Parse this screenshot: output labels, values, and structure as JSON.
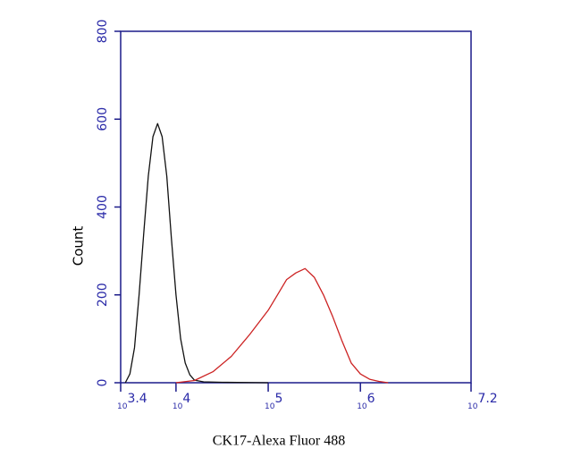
{
  "chart_data": {
    "type": "line",
    "xlabel": "CK17-Alexa Fluor 488",
    "ylabel": "Count",
    "xscale": "log",
    "xlim": [
      2511.9,
      15848932
    ],
    "xticks": [
      {
        "value": 2511.9,
        "label": "10^3.4"
      },
      {
        "value": 10000,
        "label": "10^4"
      },
      {
        "value": 100000,
        "label": "10^5"
      },
      {
        "value": 1000000,
        "label": "10^6"
      },
      {
        "value": 15848932,
        "label": "10^7.2"
      }
    ],
    "ylim": [
      0,
      800
    ],
    "yticks": [
      0,
      200,
      400,
      600,
      800
    ],
    "axis_color": "#1c1c8a",
    "series": [
      {
        "color": "#111111",
        "x": [
          2818,
          3162,
          3548,
          3981,
          4467,
          5012,
          5623,
          6310,
          7079,
          7943,
          8913,
          10000,
          11220,
          12589,
          14125,
          15849,
          19953,
          31623,
          100000
        ],
        "values": [
          0,
          20,
          80,
          200,
          340,
          470,
          560,
          590,
          560,
          470,
          330,
          200,
          100,
          45,
          18,
          6,
          2,
          1,
          0
        ]
      },
      {
        "color": "#cc2222",
        "x": [
          10000,
          15849,
          25119,
          39811,
          63096,
          100000,
          125893,
          158489,
          199526,
          251189,
          316228,
          398107,
          501187,
          630957,
          794328,
          1000000,
          1258925,
          1584893,
          1995262
        ],
        "values": [
          0,
          5,
          25,
          60,
          110,
          165,
          200,
          235,
          250,
          260,
          240,
          200,
          150,
          95,
          45,
          20,
          8,
          3,
          0
        ]
      }
    ]
  }
}
